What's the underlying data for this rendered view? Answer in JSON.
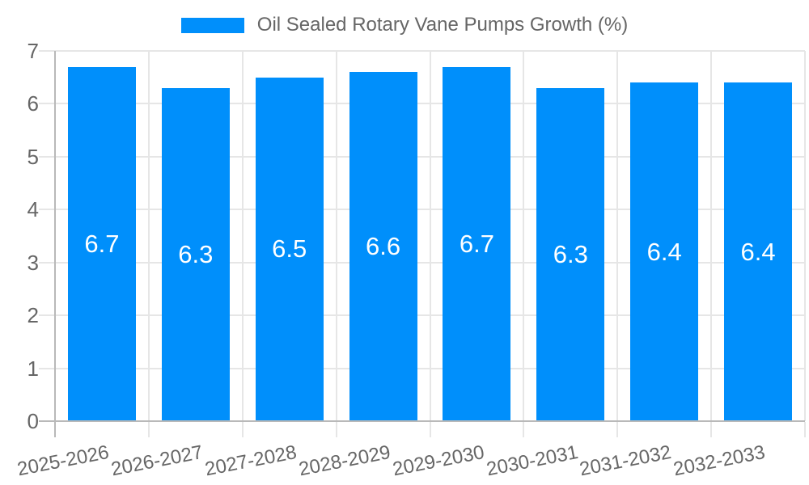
{
  "chart_data": {
    "type": "bar",
    "title": "Oil Sealed Rotary Vane Pumps Growth (%)",
    "legend_position": "top",
    "categories": [
      "2025-2026",
      "2026-2027",
      "2027-2028",
      "2028-2029",
      "2029-2030",
      "2030-2031",
      "2031-2032",
      "2032-2033"
    ],
    "series": [
      {
        "name": "Oil Sealed Rotary Vane Pumps Growth (%)",
        "values": [
          6.7,
          6.3,
          6.5,
          6.6,
          6.7,
          6.3,
          6.4,
          6.4
        ]
      }
    ],
    "data_label_decimals": 1,
    "xlabel": "",
    "ylabel": "",
    "ylim": [
      0,
      7
    ],
    "yticks": [
      0,
      1,
      2,
      3,
      4,
      5,
      6,
      7
    ],
    "grid": true,
    "colors": {
      "bar": "#008FFB",
      "grid": "#e6e6e6",
      "axis": "#b9b9b9",
      "label_text": "#666666",
      "data_label_text": "#ffffff",
      "background": "#ffffff"
    }
  }
}
